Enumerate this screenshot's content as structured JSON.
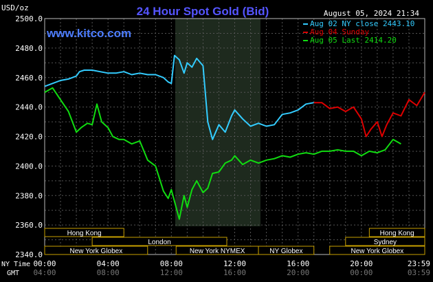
{
  "chart_data": {
    "type": "line",
    "title": "24 Hour Spot Gold (Bid)",
    "watermark": "www.kitco.com",
    "ylabel": "USD/oz",
    "timestamp": "August 05, 2024 21:34",
    "ylim": [
      2340,
      2500
    ],
    "y_ticks": [
      "2500.0",
      "2480.0",
      "2460.0",
      "2440.0",
      "2420.0",
      "2400.0",
      "2380.0",
      "2360.0",
      "2340.0"
    ],
    "x_row_labels": [
      "NY Time",
      "GMT"
    ],
    "x_ticks_ny": [
      "00:00",
      "04:00",
      "08:00",
      "12:00",
      "16:00",
      "20:00",
      "23:59"
    ],
    "x_ticks_gmt": [
      "04:00",
      "08:00",
      "12:00",
      "16:00",
      "20:00",
      "00:00",
      "03:59"
    ],
    "grid": true,
    "legend_position": "top-right",
    "series": [
      {
        "name": "Aug 02 NY close 2443.10",
        "color": "#33ccff",
        "x": [
          0,
          0.5,
          1,
          1.5,
          2,
          2.2,
          2.5,
          3,
          3.5,
          4,
          4.5,
          5,
          5.5,
          6,
          6.5,
          7,
          7.5,
          7.8,
          8,
          8.2,
          8.5,
          8.8,
          9,
          9.3,
          9.6,
          10,
          10.3,
          10.6,
          11,
          11.4,
          11.8,
          12,
          12.5,
          13,
          13.5,
          14,
          14.5,
          15,
          15.5,
          16,
          16.5,
          17
        ],
        "values": [
          2454,
          2456,
          2458,
          2459,
          2461,
          2464,
          2465,
          2465,
          2464,
          2463,
          2463,
          2464,
          2462,
          2463,
          2462,
          2462,
          2460,
          2457,
          2456,
          2475,
          2472,
          2463,
          2470,
          2467,
          2473,
          2468,
          2430,
          2418,
          2428,
          2423,
          2434,
          2438,
          2432,
          2427,
          2429,
          2427,
          2428,
          2435,
          2436,
          2438,
          2442,
          2443
        ]
      },
      {
        "name": "Aug 04 Sunday",
        "color": "#dd0000",
        "x": [
          17,
          17.5,
          18,
          18.5,
          19,
          19.5,
          20,
          20.3,
          20.6,
          21,
          21.3,
          21.6,
          22,
          22.5,
          23,
          23.5,
          24
        ],
        "values": [
          2443,
          2443,
          2439,
          2440,
          2437,
          2440,
          2432,
          2420,
          2425,
          2430,
          2420,
          2428,
          2436,
          2434,
          2445,
          2441,
          2450
        ]
      },
      {
        "name": "Aug 05 Last 2414.20",
        "color": "#11dd11",
        "x": [
          0,
          0.5,
          1,
          1.5,
          2,
          2.3,
          2.7,
          3,
          3.3,
          3.6,
          4,
          4.3,
          4.7,
          5,
          5.5,
          6,
          6.5,
          7,
          7.5,
          7.8,
          8,
          8.2,
          8.5,
          8.8,
          9,
          9.3,
          9.6,
          10,
          10.3,
          10.6,
          11,
          11.4,
          11.8,
          12,
          12.5,
          13,
          13.5,
          14,
          14.5,
          15,
          15.5,
          16,
          16.5,
          17,
          17.5,
          18,
          18.5,
          19,
          19.5,
          20,
          20.5,
          21,
          21.5,
          22,
          22.5
        ],
        "values": [
          2450,
          2453,
          2445,
          2437,
          2423,
          2426,
          2429,
          2428,
          2442,
          2430,
          2426,
          2420,
          2418,
          2418,
          2415,
          2417,
          2404,
          2400,
          2383,
          2378,
          2384,
          2376,
          2364,
          2380,
          2372,
          2384,
          2390,
          2382,
          2385,
          2395,
          2396,
          2402,
          2404,
          2407,
          2401,
          2404,
          2402,
          2404,
          2405,
          2407,
          2406,
          2408,
          2409,
          2408,
          2410,
          2410,
          2411,
          2410,
          2410,
          2407,
          2410,
          2409,
          2411,
          2418,
          2415
        ]
      }
    ],
    "sessions": [
      {
        "label": "Hong Kong",
        "start": 0,
        "end": 5,
        "row": 0
      },
      {
        "label": "London",
        "start": 3,
        "end": 11.5,
        "row": 1
      },
      {
        "label": "New York Globex",
        "start": 0,
        "end": 6.5,
        "row": 2
      },
      {
        "label": "New York NYMEX",
        "start": 8.3,
        "end": 13.5,
        "row": 2
      },
      {
        "label": "NY Globex",
        "start": 13.5,
        "end": 17,
        "row": 2
      },
      {
        "label": "Hong Kong",
        "start": 20.5,
        "end": 24,
        "row": 0
      },
      {
        "label": "Sydney",
        "start": 19,
        "end": 24,
        "row": 1
      },
      {
        "label": "New York Globex",
        "start": 18,
        "end": 24,
        "row": 2
      }
    ]
  }
}
